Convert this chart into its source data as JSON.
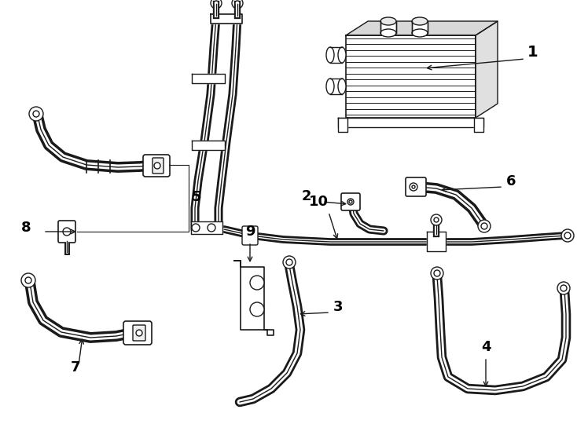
{
  "background_color": "#ffffff",
  "line_color": "#1a1a1a",
  "figsize": [
    7.34,
    5.4
  ],
  "dpi": 100,
  "hose_outer": 9,
  "hose_inner": 5,
  "hose_lw": 1.0
}
